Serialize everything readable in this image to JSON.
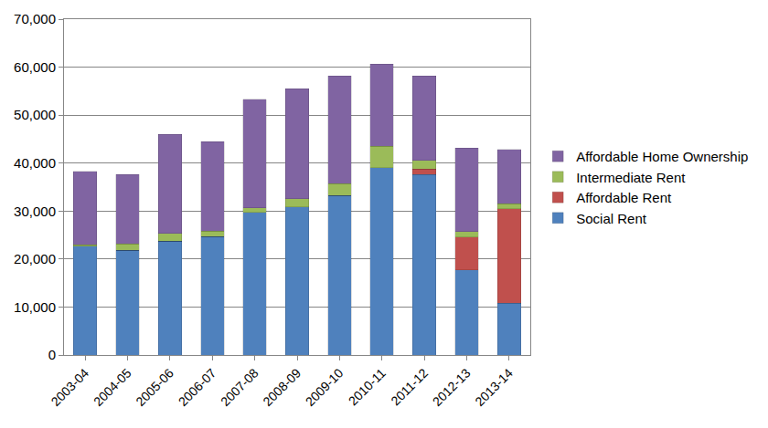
{
  "chart_data": {
    "type": "bar",
    "stacked": true,
    "categories": [
      "2003-04",
      "2004-05",
      "2005-06",
      "2006-07",
      "2007-08",
      "2008-09",
      "2009-10",
      "2010-11",
      "2011-12",
      "2012-13",
      "2013-14"
    ],
    "series": [
      {
        "name": "Social Rent",
        "color": "#4f81bd",
        "values": [
          22700,
          21800,
          23700,
          24700,
          29700,
          30900,
          33200,
          39000,
          37600,
          17700,
          10800
        ]
      },
      {
        "name": "Affordable Rent",
        "color": "#c0504d",
        "values": [
          0,
          0,
          0,
          0,
          0,
          0,
          0,
          0,
          1200,
          6900,
          19700
        ]
      },
      {
        "name": "Intermediate Rent",
        "color": "#9bbb59",
        "values": [
          300,
          1400,
          1600,
          1100,
          1000,
          1700,
          2500,
          4500,
          1800,
          1100,
          1000
        ]
      },
      {
        "name": "Affordable Home Ownership",
        "color": "#8064a2",
        "values": [
          15300,
          14400,
          20700,
          18700,
          22600,
          22900,
          22500,
          17100,
          17600,
          17400,
          11300
        ]
      }
    ],
    "ylim": [
      0,
      70000
    ],
    "yticks": [
      0,
      {
        "value": 10000,
        "label": "10,000"
      },
      {
        "value": 20000,
        "label": "20,000"
      },
      {
        "value": 30000,
        "label": "30,000"
      },
      {
        "value": 40000,
        "label": "40,000"
      },
      {
        "value": 50000,
        "label": "50,000"
      },
      {
        "value": 60000,
        "label": "60,000"
      },
      {
        "value": 70000,
        "label": "70,000"
      }
    ],
    "grid": true,
    "legend": "right"
  }
}
